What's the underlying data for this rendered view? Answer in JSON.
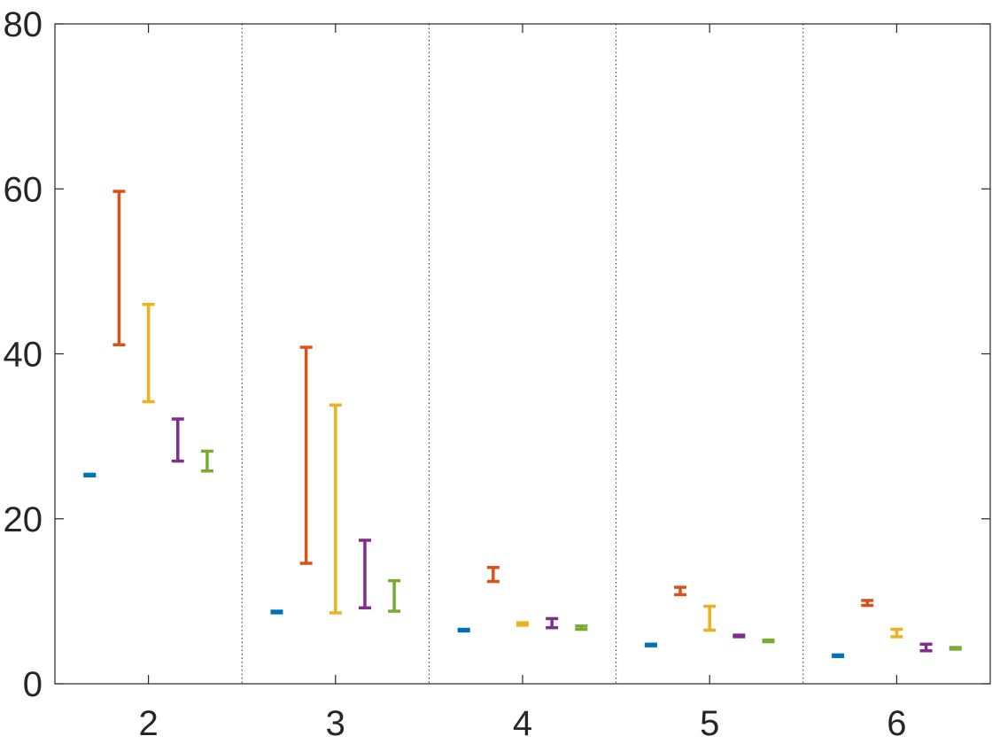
{
  "chart_data": {
    "type": "errorbar",
    "title": "",
    "xlabel": "",
    "ylabel": "",
    "categories": [
      "2",
      "3",
      "4",
      "5",
      "6"
    ],
    "xlim": [
      1.5,
      6.5
    ],
    "ylim": [
      0,
      80
    ],
    "yticks": [
      0,
      20,
      40,
      60,
      80
    ],
    "grid": "vertical dotted separators between groups",
    "legend": "none",
    "series": [
      {
        "color": "#0072BD",
        "low": [
          25.2,
          8.6,
          6.4,
          4.6,
          3.3
        ],
        "high": [
          25.4,
          8.8,
          6.6,
          4.8,
          3.5
        ]
      },
      {
        "color": "#D95319",
        "low": [
          41.1,
          14.6,
          12.4,
          10.8,
          9.5
        ],
        "high": [
          59.7,
          40.8,
          14.1,
          11.7,
          10.1
        ]
      },
      {
        "color": "#EDB120",
        "low": [
          34.2,
          8.6,
          7.1,
          6.5,
          5.7
        ],
        "high": [
          46.0,
          33.8,
          7.4,
          9.4,
          6.6
        ]
      },
      {
        "color": "#7E2F8E",
        "low": [
          27.0,
          9.2,
          6.8,
          5.7,
          4.0
        ],
        "high": [
          32.1,
          17.4,
          7.9,
          5.9,
          4.8
        ]
      },
      {
        "color": "#77AC30",
        "low": [
          25.8,
          8.8,
          6.6,
          5.1,
          4.2
        ],
        "high": [
          28.2,
          12.5,
          7.0,
          5.3,
          4.4
        ]
      }
    ]
  }
}
